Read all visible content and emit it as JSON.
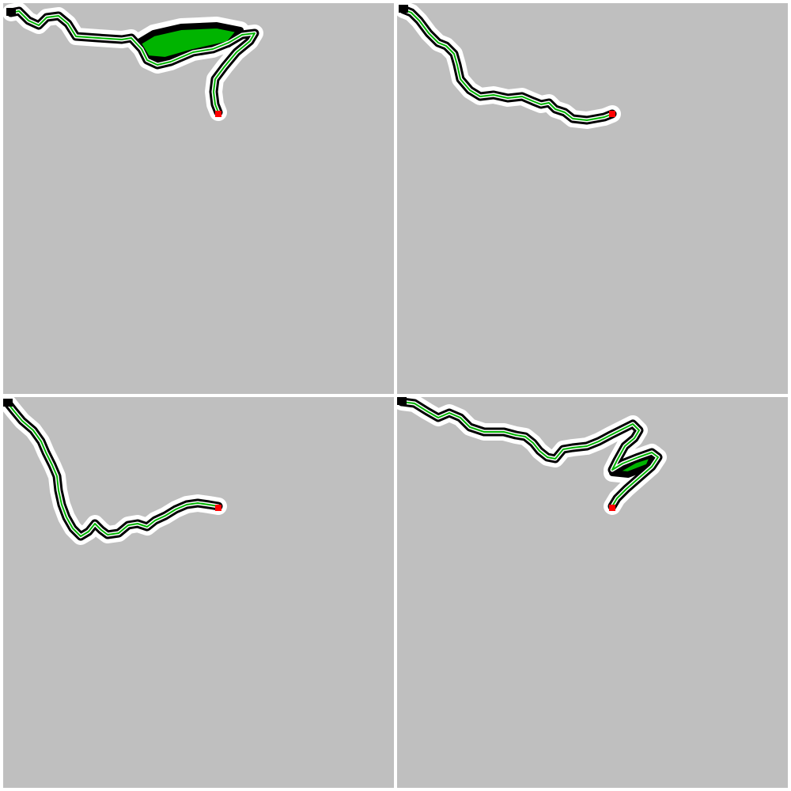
{
  "colors": {
    "background": "#bfbfbf",
    "divider": "#ffffff",
    "visited": "#ffffff",
    "wall": "#000000",
    "path": "#00b400",
    "goal": "#ff0000"
  },
  "panels": [
    {
      "name": "maze-panel-top-left",
      "path": [
        [
          10,
          12
        ],
        [
          20,
          10
        ],
        [
          32,
          22
        ],
        [
          45,
          28
        ],
        [
          55,
          18
        ],
        [
          70,
          16
        ],
        [
          82,
          26
        ],
        [
          92,
          42
        ],
        [
          120,
          44
        ],
        [
          150,
          46
        ],
        [
          162,
          44
        ],
        [
          175,
          58
        ],
        [
          182,
          72
        ],
        [
          195,
          78
        ],
        [
          212,
          74
        ],
        [
          240,
          62
        ],
        [
          265,
          58
        ],
        [
          285,
          50
        ],
        [
          302,
          40
        ],
        [
          318,
          38
        ],
        [
          312,
          48
        ],
        [
          295,
          62
        ],
        [
          280,
          80
        ],
        [
          268,
          96
        ],
        [
          266,
          112
        ],
        [
          268,
          128
        ],
        [
          272,
          138
        ]
      ],
      "loops": [
        [
          [
            170,
            50
          ],
          [
            190,
            38
          ],
          [
            225,
            30
          ],
          [
            270,
            28
          ],
          [
            300,
            34
          ],
          [
            285,
            52
          ],
          [
            240,
            62
          ],
          [
            205,
            72
          ],
          [
            182,
            70
          ]
        ]
      ],
      "goal": [
        272,
        140
      ]
    },
    {
      "name": "maze-panel-top-right",
      "path": [
        [
          8,
          8
        ],
        [
          18,
          12
        ],
        [
          28,
          22
        ],
        [
          40,
          38
        ],
        [
          52,
          50
        ],
        [
          62,
          54
        ],
        [
          72,
          64
        ],
        [
          76,
          78
        ],
        [
          80,
          96
        ],
        [
          92,
          110
        ],
        [
          105,
          118
        ],
        [
          122,
          116
        ],
        [
          140,
          120
        ],
        [
          158,
          118
        ],
        [
          172,
          124
        ],
        [
          182,
          128
        ],
        [
          192,
          126
        ],
        [
          200,
          134
        ],
        [
          212,
          138
        ],
        [
          222,
          146
        ],
        [
          240,
          148
        ],
        [
          262,
          144
        ],
        [
          272,
          140
        ]
      ],
      "loops": [],
      "goal": [
        272,
        140
      ]
    },
    {
      "name": "maze-panel-bottom-left",
      "path": [
        [
          6,
          8
        ],
        [
          14,
          18
        ],
        [
          24,
          30
        ],
        [
          38,
          42
        ],
        [
          48,
          56
        ],
        [
          54,
          70
        ],
        [
          62,
          86
        ],
        [
          68,
          100
        ],
        [
          70,
          118
        ],
        [
          74,
          136
        ],
        [
          80,
          152
        ],
        [
          88,
          166
        ],
        [
          98,
          176
        ],
        [
          108,
          170
        ],
        [
          116,
          160
        ],
        [
          124,
          168
        ],
        [
          132,
          174
        ],
        [
          146,
          172
        ],
        [
          158,
          162
        ],
        [
          170,
          160
        ],
        [
          182,
          164
        ],
        [
          192,
          156
        ],
        [
          205,
          150
        ],
        [
          218,
          142
        ],
        [
          232,
          136
        ],
        [
          246,
          134
        ],
        [
          260,
          136
        ],
        [
          272,
          138
        ]
      ],
      "loops": [],
      "goal": [
        272,
        140
      ]
    },
    {
      "name": "maze-panel-bottom-right",
      "path": [
        [
          6,
          6
        ],
        [
          22,
          8
        ],
        [
          38,
          18
        ],
        [
          52,
          26
        ],
        [
          66,
          20
        ],
        [
          80,
          26
        ],
        [
          92,
          38
        ],
        [
          110,
          44
        ],
        [
          135,
          44
        ],
        [
          150,
          48
        ],
        [
          162,
          50
        ],
        [
          172,
          58
        ],
        [
          180,
          68
        ],
        [
          190,
          76
        ],
        [
          200,
          78
        ],
        [
          210,
          66
        ],
        [
          222,
          64
        ],
        [
          240,
          62
        ],
        [
          255,
          56
        ],
        [
          270,
          48
        ],
        [
          286,
          40
        ],
        [
          298,
          34
        ],
        [
          306,
          42
        ],
        [
          300,
          52
        ],
        [
          288,
          62
        ],
        [
          278,
          80
        ],
        [
          272,
          92
        ],
        [
          285,
          84
        ],
        [
          305,
          76
        ],
        [
          322,
          70
        ],
        [
          330,
          76
        ],
        [
          322,
          88
        ],
        [
          306,
          102
        ],
        [
          290,
          116
        ],
        [
          278,
          128
        ],
        [
          272,
          138
        ]
      ],
      "loops": [
        [
          [
            272,
            96
          ],
          [
            300,
            80
          ],
          [
            325,
            72
          ],
          [
            318,
            88
          ],
          [
            292,
            98
          ]
        ]
      ],
      "goal": [
        272,
        140
      ]
    }
  ]
}
